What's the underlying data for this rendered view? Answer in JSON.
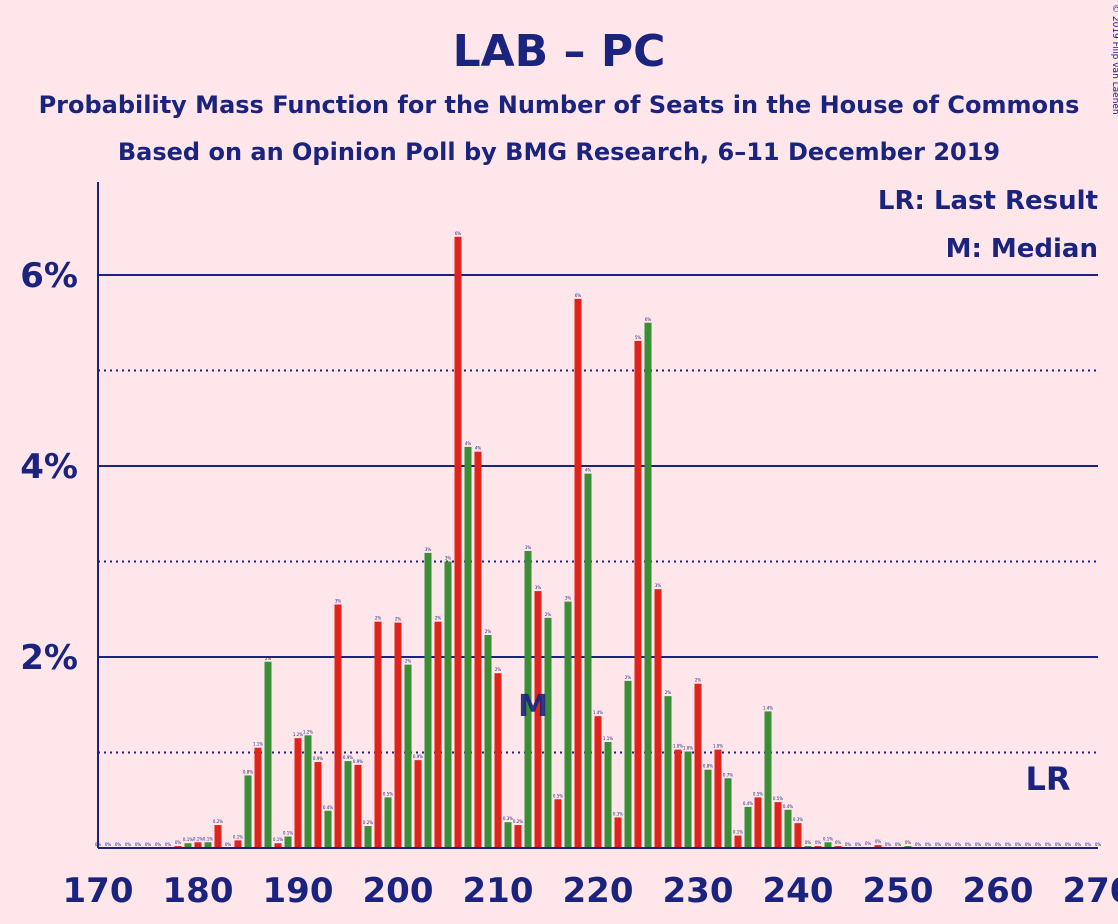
{
  "header": {
    "title": "LAB – PC",
    "subtitle1": "Probability Mass Function for the Number of Seats in the House of Commons",
    "subtitle2": "Based on an Opinion Poll by BMG Research, 6–11 December 2019",
    "copyright": "© 2019 Filip van Laenen"
  },
  "legend": {
    "lr": "LR: Last Result",
    "m": "M: Median"
  },
  "markers": {
    "lr_label": "LR",
    "median_label": "M",
    "last_result_seat": 265,
    "median_seat": 213
  },
  "colors": {
    "background": "#ffe6eb",
    "red": "#e0241b",
    "green": "#3a8e35",
    "text": "#1a237e"
  },
  "chart_data": {
    "type": "bar",
    "title": "LAB – PC",
    "xlabel": "",
    "ylabel": "",
    "xlim": [
      170,
      270
    ],
    "ylim": [
      0,
      7
    ],
    "x_ticks": [
      "170",
      "180",
      "190",
      "200",
      "210",
      "220",
      "230",
      "240",
      "250",
      "260",
      "270"
    ],
    "y_ticks": [
      {
        "value": 2,
        "label": "2%"
      },
      {
        "value": 4,
        "label": "4%"
      },
      {
        "value": 6,
        "label": "6%"
      }
    ],
    "grid": {
      "solid": [
        2,
        4,
        6
      ],
      "dotted": [
        1,
        3,
        5
      ]
    },
    "bars": [
      {
        "seat": 170,
        "value": 0.0,
        "label": "0%"
      },
      {
        "seat": 171,
        "value": 0.0,
        "label": "0%"
      },
      {
        "seat": 172,
        "value": 0.0,
        "label": "0%"
      },
      {
        "seat": 173,
        "value": 0.0,
        "label": "0%"
      },
      {
        "seat": 174,
        "value": 0.0,
        "label": "0%"
      },
      {
        "seat": 175,
        "value": 0.0,
        "label": "0%"
      },
      {
        "seat": 176,
        "value": 0.0,
        "label": "0%"
      },
      {
        "seat": 177,
        "value": 0.0,
        "label": "0%"
      },
      {
        "seat": 178,
        "value": 0.02,
        "label": "0%"
      },
      {
        "seat": 179,
        "value": 0.05,
        "label": "0.1%"
      },
      {
        "seat": 180,
        "value": 0.06,
        "label": "0.1%"
      },
      {
        "seat": 181,
        "value": 0.06,
        "label": "0.1%"
      },
      {
        "seat": 182,
        "value": 0.24,
        "label": "0.2%"
      },
      {
        "seat": 183,
        "value": 0.0,
        "label": "0%"
      },
      {
        "seat": 184,
        "value": 0.08,
        "label": "0.1%"
      },
      {
        "seat": 185,
        "value": 0.76,
        "label": "0.8%"
      },
      {
        "seat": 186,
        "value": 1.05,
        "label": "1.1%"
      },
      {
        "seat": 187,
        "value": 1.95,
        "label": "2%"
      },
      {
        "seat": 188,
        "value": 0.05,
        "label": "0.1%"
      },
      {
        "seat": 189,
        "value": 0.12,
        "label": "0.1%"
      },
      {
        "seat": 190,
        "value": 1.15,
        "label": "1.2%"
      },
      {
        "seat": 191,
        "value": 1.18,
        "label": "1.2%"
      },
      {
        "seat": 192,
        "value": 0.9,
        "label": "0.9%"
      },
      {
        "seat": 193,
        "value": 0.39,
        "label": "0.4%"
      },
      {
        "seat": 194,
        "value": 2.55,
        "label": "3%"
      },
      {
        "seat": 195,
        "value": 0.91,
        "label": "0.9%"
      },
      {
        "seat": 196,
        "value": 0.87,
        "label": "0.9%"
      },
      {
        "seat": 197,
        "value": 0.23,
        "label": "0.2%"
      },
      {
        "seat": 198,
        "value": 2.37,
        "label": "2%"
      },
      {
        "seat": 199,
        "value": 0.53,
        "label": "0.5%"
      },
      {
        "seat": 200,
        "value": 2.36,
        "label": "2%"
      },
      {
        "seat": 201,
        "value": 1.92,
        "label": "2%"
      },
      {
        "seat": 202,
        "value": 0.92,
        "label": "0.9%"
      },
      {
        "seat": 203,
        "value": 3.09,
        "label": "3%"
      },
      {
        "seat": 204,
        "value": 2.37,
        "label": "2%"
      },
      {
        "seat": 205,
        "value": 3.0,
        "label": "3%"
      },
      {
        "seat": 206,
        "value": 6.4,
        "label": "6%"
      },
      {
        "seat": 207,
        "value": 4.2,
        "label": "4%"
      },
      {
        "seat": 208,
        "value": 4.15,
        "label": "4%"
      },
      {
        "seat": 209,
        "value": 2.23,
        "label": "2%"
      },
      {
        "seat": 210,
        "value": 1.83,
        "label": "2%"
      },
      {
        "seat": 211,
        "value": 0.27,
        "label": "0.3%"
      },
      {
        "seat": 212,
        "value": 0.24,
        "label": "0.2%"
      },
      {
        "seat": 213,
        "value": 3.11,
        "label": "3%"
      },
      {
        "seat": 214,
        "value": 2.69,
        "label": "3%"
      },
      {
        "seat": 215,
        "value": 2.41,
        "label": "2%"
      },
      {
        "seat": 216,
        "value": 0.51,
        "label": "0.5%"
      },
      {
        "seat": 217,
        "value": 2.58,
        "label": "3%"
      },
      {
        "seat": 218,
        "value": 5.75,
        "label": "6%"
      },
      {
        "seat": 219,
        "value": 3.92,
        "label": "4%"
      },
      {
        "seat": 220,
        "value": 1.38,
        "label": "1.4%"
      },
      {
        "seat": 221,
        "value": 1.11,
        "label": "1.1%"
      },
      {
        "seat": 222,
        "value": 0.32,
        "label": "0.3%"
      },
      {
        "seat": 223,
        "value": 1.75,
        "label": "2%"
      },
      {
        "seat": 224,
        "value": 5.31,
        "label": "5%"
      },
      {
        "seat": 225,
        "value": 5.5,
        "label": "6%"
      },
      {
        "seat": 226,
        "value": 2.71,
        "label": "3%"
      },
      {
        "seat": 227,
        "value": 1.59,
        "label": "2%"
      },
      {
        "seat": 228,
        "value": 1.03,
        "label": "1.0%"
      },
      {
        "seat": 229,
        "value": 1.01,
        "label": "1.0%"
      },
      {
        "seat": 230,
        "value": 1.72,
        "label": "2%"
      },
      {
        "seat": 231,
        "value": 0.82,
        "label": "0.8%"
      },
      {
        "seat": 232,
        "value": 1.03,
        "label": "1.0%"
      },
      {
        "seat": 233,
        "value": 0.73,
        "label": "0.7%"
      },
      {
        "seat": 234,
        "value": 0.13,
        "label": "0.1%"
      },
      {
        "seat": 235,
        "value": 0.43,
        "label": "0.4%"
      },
      {
        "seat": 236,
        "value": 0.53,
        "label": "0.5%"
      },
      {
        "seat": 237,
        "value": 1.43,
        "label": "1.4%"
      },
      {
        "seat": 238,
        "value": 0.48,
        "label": "0.5%"
      },
      {
        "seat": 239,
        "value": 0.4,
        "label": "0.4%"
      },
      {
        "seat": 240,
        "value": 0.26,
        "label": "0.3%"
      },
      {
        "seat": 241,
        "value": 0.02,
        "label": "0%"
      },
      {
        "seat": 242,
        "value": 0.02,
        "label": "0%"
      },
      {
        "seat": 243,
        "value": 0.06,
        "label": "0.1%"
      },
      {
        "seat": 244,
        "value": 0.02,
        "label": "0%"
      },
      {
        "seat": 245,
        "value": 0.0,
        "label": "0%"
      },
      {
        "seat": 246,
        "value": 0.0,
        "label": "0%"
      },
      {
        "seat": 247,
        "value": 0.01,
        "label": "0%"
      },
      {
        "seat": 248,
        "value": 0.03,
        "label": "0%"
      },
      {
        "seat": 249,
        "value": 0.0,
        "label": "0%"
      },
      {
        "seat": 250,
        "value": 0.0,
        "label": "0%"
      },
      {
        "seat": 251,
        "value": 0.02,
        "label": "0%"
      },
      {
        "seat": 252,
        "value": 0.0,
        "label": "0%"
      },
      {
        "seat": 253,
        "value": 0.0,
        "label": "0%"
      },
      {
        "seat": 254,
        "value": 0.0,
        "label": "0%"
      },
      {
        "seat": 255,
        "value": 0.0,
        "label": "0%"
      },
      {
        "seat": 256,
        "value": 0.0,
        "label": "0%"
      },
      {
        "seat": 257,
        "value": 0.0,
        "label": "0%"
      },
      {
        "seat": 258,
        "value": 0.0,
        "label": "0%"
      },
      {
        "seat": 259,
        "value": 0.0,
        "label": "0%"
      },
      {
        "seat": 260,
        "value": 0.0,
        "label": "0%"
      },
      {
        "seat": 261,
        "value": 0.0,
        "label": "0%"
      },
      {
        "seat": 262,
        "value": 0.0,
        "label": "0%"
      },
      {
        "seat": 263,
        "value": 0.0,
        "label": "0%"
      },
      {
        "seat": 264,
        "value": 0.0,
        "label": "0%"
      },
      {
        "seat": 265,
        "value": 0.0,
        "label": "0%"
      },
      {
        "seat": 266,
        "value": 0.0,
        "label": "0%"
      },
      {
        "seat": 267,
        "value": 0.0,
        "label": "0%"
      },
      {
        "seat": 268,
        "value": 0.0,
        "label": "0%"
      },
      {
        "seat": 269,
        "value": 0.0,
        "label": "0%"
      },
      {
        "seat": 270,
        "value": 0.0,
        "label": "0%"
      }
    ]
  }
}
